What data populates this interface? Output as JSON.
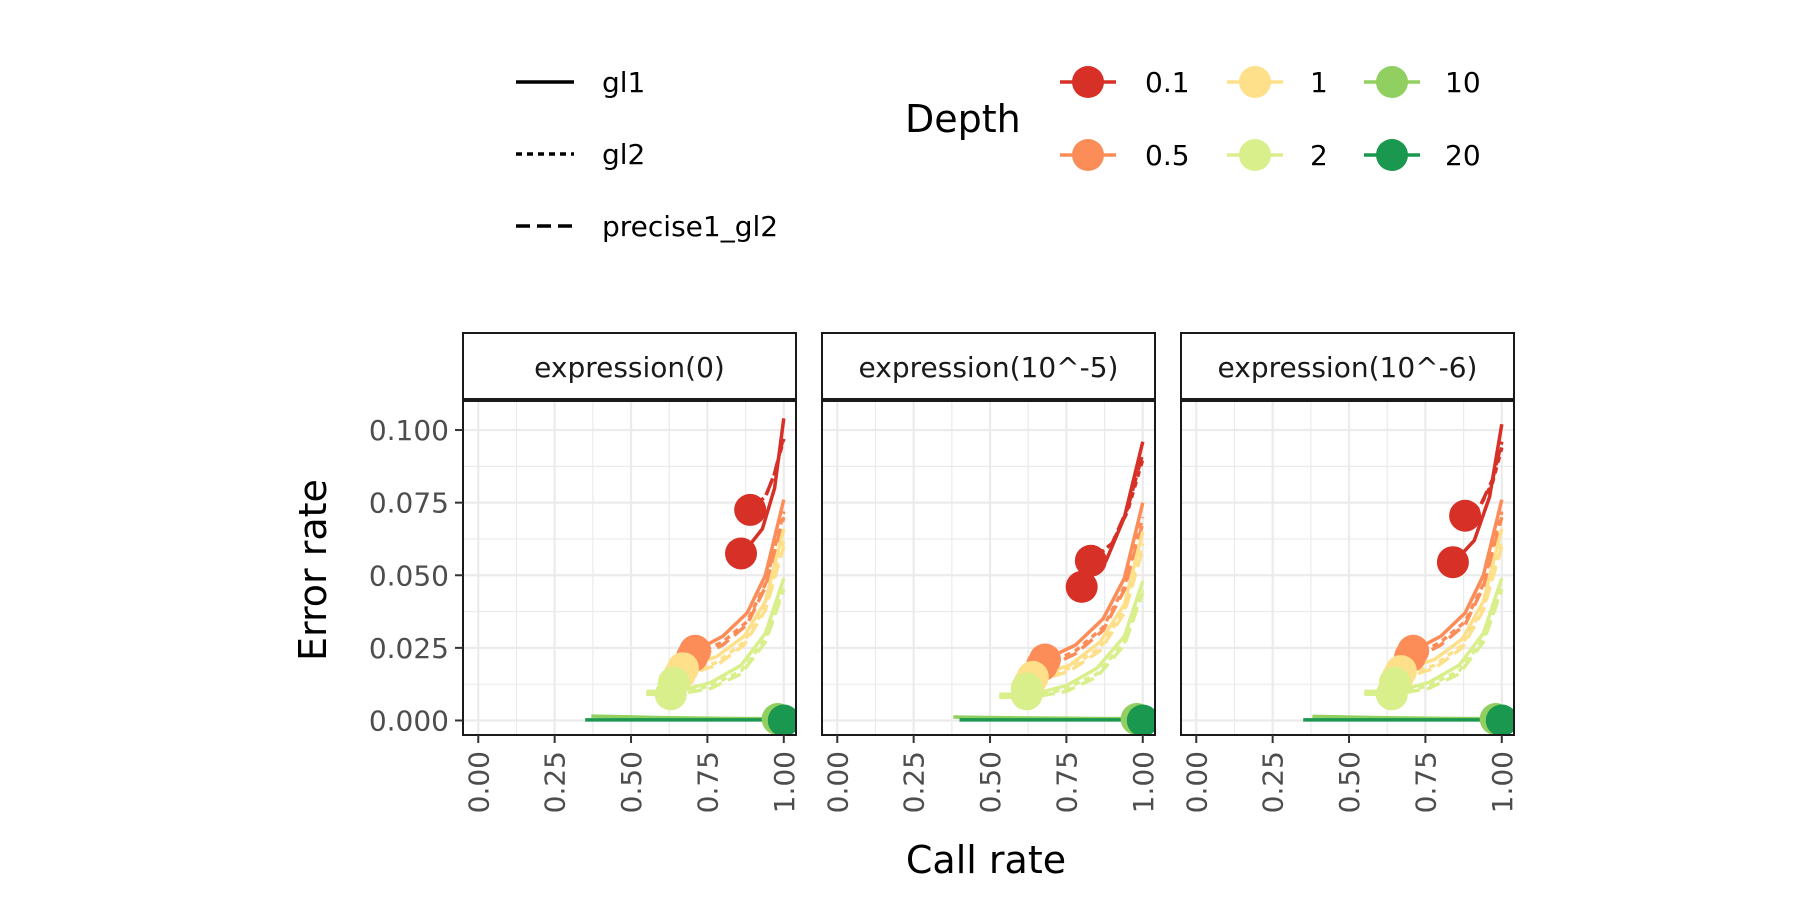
{
  "chart_data": {
    "type": "line",
    "xlabel": "Call rate",
    "ylabel": "Error rate",
    "x_ticks": [
      "0.00",
      "0.25",
      "0.50",
      "0.75",
      "1.00"
    ],
    "x_tick_values": [
      0,
      0.25,
      0.5,
      0.75,
      1.0
    ],
    "y_ticks": [
      "0.000",
      "0.025",
      "0.050",
      "0.075",
      "0.100"
    ],
    "y_tick_values": [
      0,
      0.025,
      0.05,
      0.075,
      0.1
    ],
    "xlim": [
      -0.05,
      1.04
    ],
    "ylim": [
      -0.005,
      0.11
    ],
    "grid": true,
    "linetype_legend": {
      "entries": [
        {
          "label": "gl1",
          "dash": "solid"
        },
        {
          "label": "gl2",
          "dash": "dotted"
        },
        {
          "label": "precise1_gl2",
          "dash": "dashed"
        }
      ]
    },
    "depth_legend": {
      "title": "Depth",
      "entries": [
        {
          "label": "0.1",
          "color": "#d73027"
        },
        {
          "label": "0.5",
          "color": "#fc8d59"
        },
        {
          "label": "1",
          "color": "#fee08b"
        },
        {
          "label": "2",
          "color": "#d9ef8b"
        },
        {
          "label": "10",
          "color": "#91cf60"
        },
        {
          "label": "20",
          "color": "#1a9850"
        }
      ]
    },
    "panels": [
      {
        "label": "expression(0)",
        "series": [
          {
            "depth": "0.1",
            "type": "gl1",
            "x": [
              0.87,
              0.93,
              0.97,
              1.0
            ],
            "y": [
              0.058,
              0.066,
              0.08,
              0.104
            ]
          },
          {
            "depth": "0.1",
            "type": "gl2",
            "x": [
              0.89,
              0.94,
              0.97,
              1.0
            ],
            "y": [
              0.073,
              0.077,
              0.085,
              0.097
            ]
          },
          {
            "depth": "0.1",
            "type": "precise1_gl2",
            "x": [
              0.89,
              0.94,
              0.97,
              1.0
            ],
            "y": [
              0.073,
              0.077,
              0.085,
              0.098
            ]
          },
          {
            "depth": "0.5",
            "type": "gl1",
            "x": [
              0.71,
              0.8,
              0.88,
              0.94,
              1.0
            ],
            "y": [
              0.024,
              0.029,
              0.037,
              0.05,
              0.076
            ]
          },
          {
            "depth": "0.5",
            "type": "gl2",
            "x": [
              0.71,
              0.8,
              0.88,
              0.94,
              1.0
            ],
            "y": [
              0.023,
              0.027,
              0.034,
              0.047,
              0.072
            ]
          },
          {
            "depth": "0.5",
            "type": "precise1_gl2",
            "x": [
              0.72,
              0.8,
              0.88,
              0.94,
              1.0
            ],
            "y": [
              0.022,
              0.026,
              0.033,
              0.046,
              0.07
            ]
          },
          {
            "depth": "1",
            "type": "gl1",
            "x": [
              0.67,
              0.78,
              0.87,
              0.94,
              1.0
            ],
            "y": [
              0.018,
              0.022,
              0.029,
              0.041,
              0.066
            ]
          },
          {
            "depth": "1",
            "type": "gl2",
            "x": [
              0.66,
              0.78,
              0.87,
              0.94,
              1.0
            ],
            "y": [
              0.016,
              0.02,
              0.027,
              0.039,
              0.062
            ]
          },
          {
            "depth": "1",
            "type": "precise1_gl2",
            "x": [
              0.66,
              0.78,
              0.87,
              0.94,
              1.0
            ],
            "y": [
              0.015,
              0.019,
              0.026,
              0.038,
              0.06
            ]
          },
          {
            "depth": "2",
            "type": "gl1",
            "x": [
              0.55,
              0.65,
              0.76,
              0.86,
              0.94,
              1.0
            ],
            "y": [
              0.01,
              0.01,
              0.013,
              0.019,
              0.03,
              0.049
            ]
          },
          {
            "depth": "2",
            "type": "gl2",
            "x": [
              0.55,
              0.65,
              0.76,
              0.86,
              0.94,
              1.0
            ],
            "y": [
              0.009,
              0.009,
              0.012,
              0.017,
              0.028,
              0.046
            ]
          },
          {
            "depth": "2",
            "type": "precise1_gl2",
            "x": [
              0.55,
              0.65,
              0.76,
              0.86,
              0.94,
              1.0
            ],
            "y": [
              0.009,
              0.009,
              0.011,
              0.016,
              0.027,
              0.045
            ]
          },
          {
            "depth": "10",
            "type": "gl1",
            "x": [
              0.37,
              0.6,
              0.8,
              1.0
            ],
            "y": [
              0.0015,
              0.001,
              0.0007,
              0.0006
            ]
          },
          {
            "depth": "20",
            "type": "gl1",
            "x": [
              0.35,
              0.6,
              0.8,
              1.0
            ],
            "y": [
              0.0002,
              0.0002,
              0.0002,
              0.0002
            ]
          }
        ],
        "points": [
          {
            "depth": "0.1",
            "x": 0.89,
            "y": 0.0725
          },
          {
            "depth": "0.1",
            "x": 0.86,
            "y": 0.0575
          },
          {
            "depth": "0.5",
            "x": 0.71,
            "y": 0.024
          },
          {
            "depth": "0.5",
            "x": 0.7,
            "y": 0.022
          },
          {
            "depth": "1",
            "x": 0.67,
            "y": 0.018
          },
          {
            "depth": "1",
            "x": 0.66,
            "y": 0.016
          },
          {
            "depth": "2",
            "x": 0.64,
            "y": 0.013
          },
          {
            "depth": "2",
            "x": 0.63,
            "y": 0.009
          },
          {
            "depth": "10",
            "x": 0.98,
            "y": 0.0005
          },
          {
            "depth": "20",
            "x": 1.0,
            "y": 0.0
          }
        ]
      },
      {
        "label": "expression(10^-5)",
        "series": [
          {
            "depth": "0.1",
            "type": "gl1",
            "x": [
              0.8,
              0.88,
              0.94,
              1.0
            ],
            "y": [
              0.046,
              0.055,
              0.07,
              0.096
            ]
          },
          {
            "depth": "0.1",
            "type": "gl2",
            "x": [
              0.83,
              0.9,
              0.95,
              1.0
            ],
            "y": [
              0.055,
              0.061,
              0.072,
              0.09
            ]
          },
          {
            "depth": "0.1",
            "type": "precise1_gl2",
            "x": [
              0.83,
              0.9,
              0.95,
              1.0
            ],
            "y": [
              0.055,
              0.061,
              0.073,
              0.092
            ]
          },
          {
            "depth": "0.5",
            "type": "gl1",
            "x": [
              0.68,
              0.78,
              0.87,
              0.94,
              1.0
            ],
            "y": [
              0.021,
              0.026,
              0.035,
              0.049,
              0.075
            ]
          },
          {
            "depth": "0.5",
            "type": "gl2",
            "x": [
              0.68,
              0.78,
              0.87,
              0.94,
              1.0
            ],
            "y": [
              0.019,
              0.024,
              0.032,
              0.046,
              0.07
            ]
          },
          {
            "depth": "0.5",
            "type": "precise1_gl2",
            "x": [
              0.68,
              0.78,
              0.87,
              0.94,
              1.0
            ],
            "y": [
              0.018,
              0.023,
              0.031,
              0.045,
              0.068
            ]
          },
          {
            "depth": "1",
            "type": "gl1",
            "x": [
              0.64,
              0.76,
              0.86,
              0.94,
              1.0
            ],
            "y": [
              0.015,
              0.019,
              0.027,
              0.04,
              0.065
            ]
          },
          {
            "depth": "1",
            "type": "gl2",
            "x": [
              0.64,
              0.76,
              0.86,
              0.94,
              1.0
            ],
            "y": [
              0.014,
              0.018,
              0.025,
              0.038,
              0.061
            ]
          },
          {
            "depth": "1",
            "type": "precise1_gl2",
            "x": [
              0.64,
              0.76,
              0.86,
              0.94,
              1.0
            ],
            "y": [
              0.013,
              0.017,
              0.024,
              0.037,
              0.059
            ]
          },
          {
            "depth": "2",
            "type": "gl1",
            "x": [
              0.53,
              0.64,
              0.75,
              0.85,
              0.94,
              1.0
            ],
            "y": [
              0.009,
              0.009,
              0.012,
              0.018,
              0.029,
              0.048
            ]
          },
          {
            "depth": "2",
            "type": "gl2",
            "x": [
              0.53,
              0.64,
              0.75,
              0.85,
              0.94,
              1.0
            ],
            "y": [
              0.008,
              0.008,
              0.011,
              0.016,
              0.027,
              0.045
            ]
          },
          {
            "depth": "2",
            "type": "precise1_gl2",
            "x": [
              0.53,
              0.64,
              0.75,
              0.85,
              0.94,
              1.0
            ],
            "y": [
              0.008,
              0.008,
              0.01,
              0.015,
              0.026,
              0.044
            ]
          },
          {
            "depth": "10",
            "type": "gl1",
            "x": [
              0.38,
              0.6,
              0.8,
              1.0
            ],
            "y": [
              0.0012,
              0.0009,
              0.0007,
              0.0006
            ]
          },
          {
            "depth": "20",
            "type": "gl1",
            "x": [
              0.4,
              0.6,
              0.8,
              1.0
            ],
            "y": [
              0.0002,
              0.0002,
              0.0002,
              0.0002
            ]
          }
        ],
        "points": [
          {
            "depth": "0.1",
            "x": 0.83,
            "y": 0.055
          },
          {
            "depth": "0.1",
            "x": 0.8,
            "y": 0.046
          },
          {
            "depth": "0.5",
            "x": 0.68,
            "y": 0.021
          },
          {
            "depth": "0.5",
            "x": 0.67,
            "y": 0.019
          },
          {
            "depth": "1",
            "x": 0.64,
            "y": 0.015
          },
          {
            "depth": "1",
            "x": 0.63,
            "y": 0.013
          },
          {
            "depth": "2",
            "x": 0.62,
            "y": 0.011
          },
          {
            "depth": "2",
            "x": 0.62,
            "y": 0.009
          },
          {
            "depth": "10",
            "x": 0.98,
            "y": 0.0005
          },
          {
            "depth": "20",
            "x": 1.0,
            "y": 0.0
          }
        ]
      },
      {
        "label": "expression(10^-6)",
        "series": [
          {
            "depth": "0.1",
            "type": "gl1",
            "x": [
              0.84,
              0.91,
              0.96,
              1.0
            ],
            "y": [
              0.054,
              0.062,
              0.077,
              0.102
            ]
          },
          {
            "depth": "0.1",
            "type": "gl2",
            "x": [
              0.88,
              0.93,
              0.97,
              1.0
            ],
            "y": [
              0.07,
              0.074,
              0.082,
              0.094
            ]
          },
          {
            "depth": "0.1",
            "type": "precise1_gl2",
            "x": [
              0.88,
              0.93,
              0.97,
              1.0
            ],
            "y": [
              0.07,
              0.074,
              0.083,
              0.096
            ]
          },
          {
            "depth": "0.5",
            "type": "gl1",
            "x": [
              0.71,
              0.8,
              0.88,
              0.94,
              1.0
            ],
            "y": [
              0.024,
              0.029,
              0.037,
              0.05,
              0.076
            ]
          },
          {
            "depth": "0.5",
            "type": "gl2",
            "x": [
              0.71,
              0.8,
              0.88,
              0.94,
              1.0
            ],
            "y": [
              0.022,
              0.027,
              0.034,
              0.047,
              0.072
            ]
          },
          {
            "depth": "0.5",
            "type": "precise1_gl2",
            "x": [
              0.71,
              0.8,
              0.88,
              0.94,
              1.0
            ],
            "y": [
              0.021,
              0.026,
              0.033,
              0.046,
              0.07
            ]
          },
          {
            "depth": "1",
            "type": "gl1",
            "x": [
              0.67,
              0.78,
              0.87,
              0.94,
              1.0
            ],
            "y": [
              0.017,
              0.021,
              0.028,
              0.041,
              0.066
            ]
          },
          {
            "depth": "1",
            "type": "gl2",
            "x": [
              0.66,
              0.78,
              0.87,
              0.94,
              1.0
            ],
            "y": [
              0.015,
              0.019,
              0.026,
              0.039,
              0.062
            ]
          },
          {
            "depth": "1",
            "type": "precise1_gl2",
            "x": [
              0.66,
              0.78,
              0.87,
              0.94,
              1.0
            ],
            "y": [
              0.014,
              0.018,
              0.025,
              0.038,
              0.06
            ]
          },
          {
            "depth": "2",
            "type": "gl1",
            "x": [
              0.55,
              0.65,
              0.76,
              0.86,
              0.94,
              1.0
            ],
            "y": [
              0.01,
              0.01,
              0.013,
              0.019,
              0.03,
              0.049
            ]
          },
          {
            "depth": "2",
            "type": "gl2",
            "x": [
              0.55,
              0.65,
              0.76,
              0.86,
              0.94,
              1.0
            ],
            "y": [
              0.009,
              0.009,
              0.012,
              0.017,
              0.028,
              0.046
            ]
          },
          {
            "depth": "2",
            "type": "precise1_gl2",
            "x": [
              0.55,
              0.65,
              0.76,
              0.86,
              0.94,
              1.0
            ],
            "y": [
              0.009,
              0.009,
              0.011,
              0.016,
              0.027,
              0.045
            ]
          },
          {
            "depth": "10",
            "type": "gl1",
            "x": [
              0.38,
              0.6,
              0.8,
              1.0
            ],
            "y": [
              0.0014,
              0.001,
              0.0007,
              0.0006
            ]
          },
          {
            "depth": "20",
            "type": "gl1",
            "x": [
              0.35,
              0.6,
              0.8,
              1.0
            ],
            "y": [
              0.0002,
              0.0002,
              0.0002,
              0.0002
            ]
          }
        ],
        "points": [
          {
            "depth": "0.1",
            "x": 0.88,
            "y": 0.0705
          },
          {
            "depth": "0.1",
            "x": 0.84,
            "y": 0.0545
          },
          {
            "depth": "0.5",
            "x": 0.71,
            "y": 0.024
          },
          {
            "depth": "0.5",
            "x": 0.7,
            "y": 0.022
          },
          {
            "depth": "1",
            "x": 0.67,
            "y": 0.017
          },
          {
            "depth": "1",
            "x": 0.66,
            "y": 0.015
          },
          {
            "depth": "2",
            "x": 0.65,
            "y": 0.013
          },
          {
            "depth": "2",
            "x": 0.64,
            "y": 0.009
          },
          {
            "depth": "10",
            "x": 0.98,
            "y": 0.0005
          },
          {
            "depth": "20",
            "x": 1.0,
            "y": 0.0
          }
        ]
      }
    ]
  }
}
